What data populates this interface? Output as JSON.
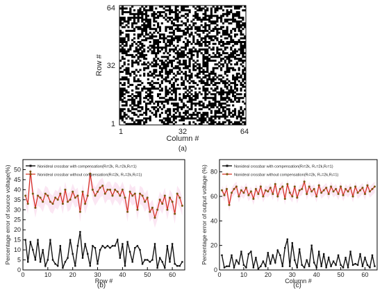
{
  "colors": {
    "compensated": "#111111",
    "uncompensated_line": "#d42a1c",
    "uncompensated_marker": "#7a5a10",
    "band": "#fbe3f2",
    "map_black": "#000000",
    "map_white": "#ffffff"
  },
  "chart_data": [
    {
      "id": "a",
      "type": "heatmap",
      "caption": "(a)",
      "xlabel": "Column #",
      "ylabel": "Row #",
      "xticks": [
        "1",
        "32",
        "64"
      ],
      "yticks": [
        "1",
        "32",
        "64"
      ],
      "size": [
        64,
        64
      ],
      "values": "random binary 0/1 pattern (black/white)"
    },
    {
      "id": "b",
      "type": "line",
      "caption": "(b)",
      "xlabel": "Row #",
      "ylabel": "Percentage error of source voltage(%)",
      "xlim": [
        0,
        65
      ],
      "ylim": [
        0,
        55
      ],
      "xticks": [
        "0",
        "10",
        "20",
        "30",
        "40",
        "50",
        "60"
      ],
      "yticks": [
        "0",
        "5",
        "10",
        "15",
        "20",
        "25",
        "30",
        "35",
        "40",
        "45",
        "50"
      ],
      "legend": [
        "Nonideal crossbar with compensation(Rₗ=2k, Rₛ=2k,Rᵣ=1)",
        "Nonideal crossbar without compensation(Rₗ=2k, Rₛ=2k,Rᵣ=1)"
      ],
      "series": [
        {
          "values": [
            15,
            4,
            14,
            10,
            5,
            15,
            4,
            10,
            2,
            5,
            15,
            5,
            3,
            2,
            12,
            1,
            4,
            6,
            15,
            8,
            2,
            12,
            19,
            6,
            13,
            8,
            2,
            12,
            11,
            3,
            10,
            12,
            11,
            12,
            11,
            12,
            12,
            15,
            6,
            13,
            2,
            14,
            9,
            4,
            11,
            12,
            10,
            3,
            5,
            5,
            4,
            5,
            13,
            1,
            6,
            4,
            1,
            12,
            4,
            13,
            3,
            2,
            2,
            4
          ]
        },
        {
          "values": [
            37,
            33,
            49,
            38,
            31,
            37,
            36,
            34,
            38,
            37,
            34,
            33,
            36,
            35,
            38,
            33,
            40,
            34,
            35,
            39,
            36,
            37,
            29,
            39,
            33,
            37,
            48,
            40,
            37,
            39,
            41,
            42,
            38,
            40,
            40,
            37,
            40,
            39,
            37,
            40,
            36,
            29,
            39,
            37,
            38,
            30,
            38,
            37,
            34,
            36,
            29,
            31,
            26,
            30,
            35,
            33,
            37,
            30,
            36,
            34,
            28,
            38,
            36,
            32
          ]
        }
      ]
    },
    {
      "id": "c",
      "type": "line",
      "caption": "(c)",
      "xlabel": "Column #",
      "ylabel": "Percentage error of output voltage (%)",
      "xlim": [
        0,
        65
      ],
      "ylim": [
        0,
        90
      ],
      "xticks": [
        "0",
        "10",
        "20",
        "30",
        "40",
        "50",
        "60"
      ],
      "yticks": [
        "0",
        "20",
        "40",
        "60",
        "80"
      ],
      "legend": [
        "Nonideal crossbar with compensation(Rₗ=2k, Rₛ=2k,Rᵣ=1)",
        "Nonideal crossbar without compensation(Rₗ=2k, Rₛ=2k,Rᵣ=1)"
      ],
      "series": [
        {
          "values": [
            12,
            2,
            3,
            3,
            12,
            2,
            8,
            5,
            15,
            4,
            2,
            13,
            15,
            2,
            10,
            1,
            3,
            7,
            3,
            14,
            5,
            12,
            6,
            16,
            12,
            3,
            18,
            25,
            3,
            22,
            8,
            2,
            17,
            4,
            2,
            8,
            3,
            20,
            6,
            2,
            15,
            3,
            13,
            2,
            10,
            3,
            7,
            4,
            12,
            4,
            2,
            10,
            2,
            15,
            4,
            5,
            4,
            13,
            3,
            10,
            4,
            2,
            12,
            3
          ]
        },
        {
          "values": [
            65,
            61,
            66,
            53,
            63,
            66,
            68,
            60,
            65,
            63,
            67,
            61,
            64,
            58,
            66,
            62,
            68,
            60,
            65,
            64,
            67,
            62,
            70,
            60,
            66,
            68,
            58,
            70,
            63,
            60,
            68,
            59,
            65,
            66,
            72,
            62,
            68,
            64,
            66,
            60,
            69,
            63,
            65,
            67,
            62,
            68,
            64,
            66,
            62,
            68,
            61,
            66,
            64,
            67,
            60,
            68,
            63,
            65,
            67,
            62,
            69,
            64,
            66,
            68
          ]
        }
      ]
    }
  ]
}
